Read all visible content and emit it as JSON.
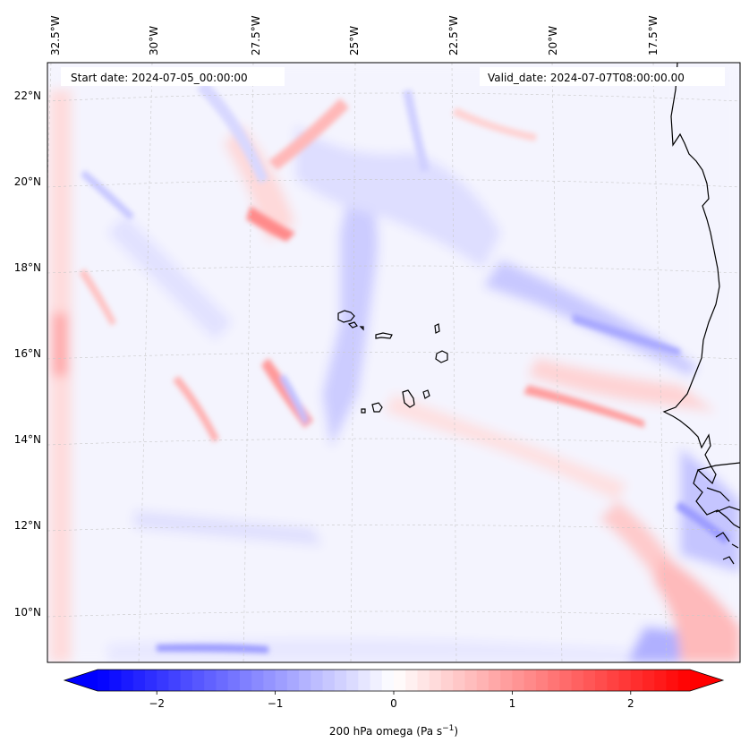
{
  "map": {
    "projection": "lambert-conformal",
    "extent": {
      "lon_min": -33.0,
      "lon_max": -16.2,
      "lat_min": 8.9,
      "lat_max": 22.8
    },
    "longitude_ticks": [
      "32.5°W",
      "30°W",
      "27.5°W",
      "25°W",
      "22.5°W",
      "20°W",
      "17.5°W"
    ],
    "latitude_ticks": [
      "22°N",
      "20°N",
      "18°N",
      "16°N",
      "14°N",
      "12°N",
      "10°N"
    ],
    "start_date_label": "Start date: 2024-07-05_00:00:00",
    "valid_date_label": "Valid_date: 2024-07-07T08:00:00.00",
    "coastline_color": "#000000",
    "gridline_color": "#c8c8c8",
    "features": [
      "west-africa-coastline",
      "cape-verde-islands"
    ]
  },
  "chart_data": {
    "type": "heatmap",
    "title": "",
    "variable": "200 hPa omega",
    "units": "Pa s⁻¹",
    "colorbar": {
      "label_text": "200 hPa omega (Pa s",
      "label_sup": "−1",
      "label_close": ")",
      "cmap": "bwr",
      "range": [
        -2.5,
        2.5
      ],
      "extend": "both",
      "ticks": [
        -2,
        -1,
        0,
        1,
        2
      ],
      "tick_labels": [
        "−2",
        "−1",
        "0",
        "1",
        "2"
      ],
      "low_color": "#0000ff",
      "mid_color": "#ffffff",
      "high_color": "#ff0000"
    }
  }
}
